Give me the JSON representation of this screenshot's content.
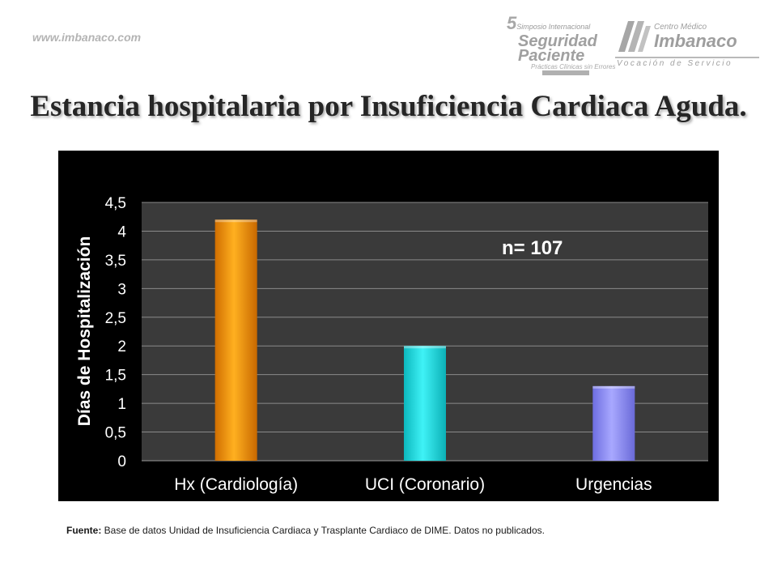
{
  "header": {
    "site_url": "www.imbanaco.com",
    "symposium_logo": {
      "number": "5",
      "line1": "Simposio Internacional",
      "line2": "Seguridad",
      "line3": "Paciente",
      "line4": "Prácticas Clínicas sin Errores"
    },
    "imbanaco_logo": {
      "line1": "Centro Médico",
      "line2": "Imbanaco",
      "tagline": "Vocación de Servicio"
    }
  },
  "title": "Estancia hospitalaria por Insuficiencia Cardiaca Aguda.",
  "chart_data": {
    "type": "bar",
    "categories": [
      "Hx (Cardiología)",
      "UCI (Coronario)",
      "Urgencias"
    ],
    "values": [
      4.2,
      2.0,
      1.3
    ],
    "ylabel": "Días de Hospitalización",
    "xlabel": "",
    "ylim": [
      0,
      4.5
    ],
    "yticks": [
      0,
      0.5,
      1,
      1.5,
      2,
      2.5,
      3,
      3.5,
      4,
      4.5
    ],
    "ytick_labels": [
      "0",
      "0,5",
      "1",
      "1,5",
      "2",
      "2,5",
      "3",
      "3,5",
      "4",
      "4,5"
    ],
    "annotation": "n= 107",
    "grid": true,
    "legend": "none",
    "bar_colors": [
      "#f28c00",
      "#19d7dd",
      "#8c8cf0"
    ],
    "background": "#000000",
    "plot_background": "#3a3a3a"
  },
  "footer": {
    "source_label": "Fuente:",
    "source_text": " Base de datos Unidad de Insuficiencia Cardiaca y Trasplante Cardiaco de DIME. Datos no publicados."
  }
}
